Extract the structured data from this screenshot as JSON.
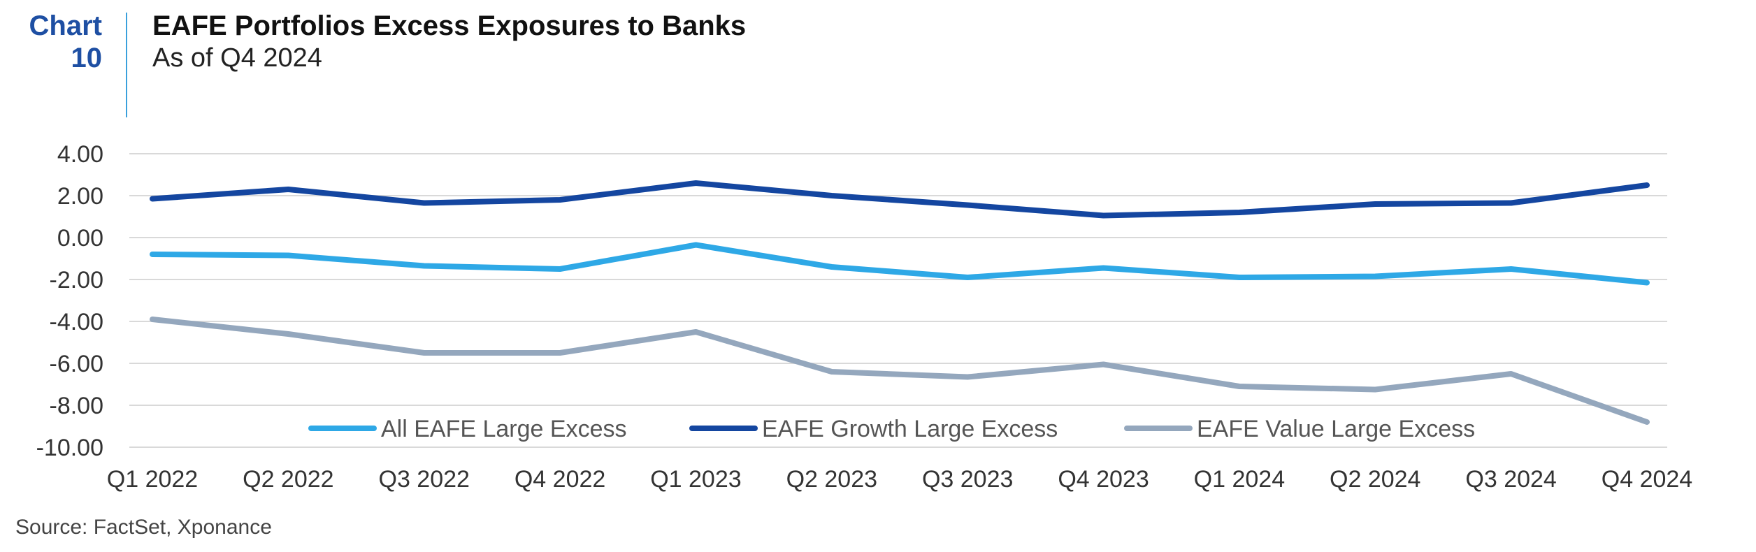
{
  "header": {
    "chart_label_line1": "Chart",
    "chart_label_line2": "10",
    "title": "EAFE Portfolios Excess Exposures to Banks",
    "subtitle": "As of Q4 2024"
  },
  "footer": {
    "source": "Source: FactSet, Xponance"
  },
  "colors": {
    "all": "#2ea8e6",
    "growth": "#1446a0",
    "value": "#94a7bd",
    "accent": "#1e4fa3",
    "grid": "#d9d9d9"
  },
  "chart_data": {
    "type": "line",
    "title": "EAFE Portfolios Excess Exposures to Banks",
    "subtitle": "As of Q4 2024",
    "categories": [
      "Q1 2022",
      "Q2 2022",
      "Q3 2022",
      "Q4 2022",
      "Q1 2023",
      "Q2 2023",
      "Q3 2023",
      "Q4 2023",
      "Q1 2024",
      "Q2 2024",
      "Q3 2024",
      "Q4 2024"
    ],
    "y_ticks": [
      "4.00",
      "2.00",
      "0.00",
      "-2.00",
      "-4.00",
      "-6.00",
      "-8.00",
      "-10.00"
    ],
    "ylim": [
      -10,
      4
    ],
    "grid": true,
    "legend_position": "bottom-inside",
    "series": [
      {
        "name": "All EAFE Large Excess",
        "color": "#2ea8e6",
        "values": [
          -0.8,
          -0.85,
          -1.35,
          -1.5,
          -0.35,
          -1.4,
          -1.9,
          -1.45,
          -1.9,
          -1.85,
          -1.5,
          -2.15
        ]
      },
      {
        "name": "EAFE Growth Large Excess",
        "color": "#1446a0",
        "values": [
          1.85,
          2.3,
          1.65,
          1.8,
          2.6,
          2.0,
          1.55,
          1.05,
          1.2,
          1.6,
          1.65,
          2.5
        ]
      },
      {
        "name": "EAFE Value Large Excess",
        "color": "#94a7bd",
        "values": [
          -3.9,
          -4.6,
          -5.5,
          -5.5,
          -4.5,
          -6.4,
          -6.65,
          -6.05,
          -7.1,
          -7.25,
          -6.5,
          -8.8
        ]
      }
    ]
  }
}
